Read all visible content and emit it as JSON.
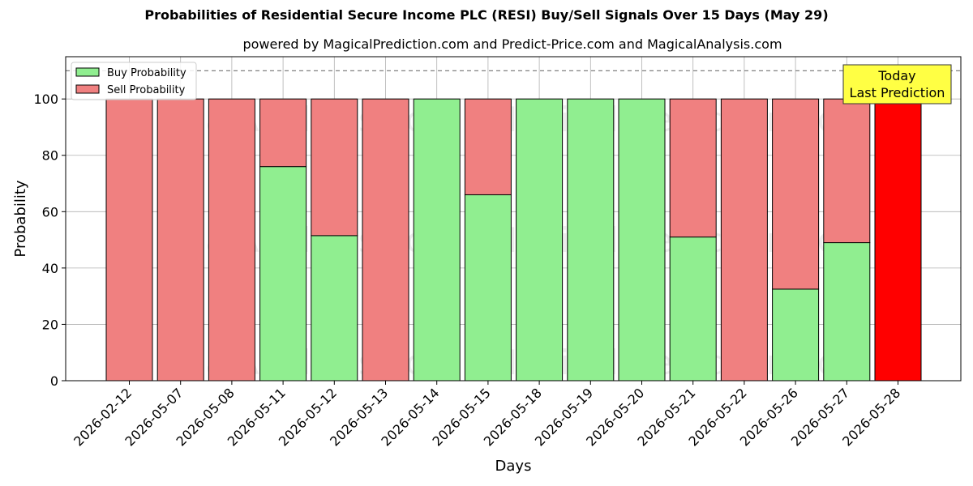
{
  "chart_data": {
    "type": "bar",
    "title": "Probabilities of Residential Secure Income PLC (RESI) Buy/Sell Signals Over 15 Days (May 29)",
    "subtitle": "powered by MagicalPrediction.com and Predict-Price.com and MagicalAnalysis.com",
    "xlabel": "Days",
    "ylabel": "Probability",
    "ylim": [
      0,
      115
    ],
    "yticks": [
      0,
      20,
      40,
      60,
      80,
      100
    ],
    "grid": true,
    "legend_position": "top-left",
    "reference_line": 110,
    "categories": [
      "2026-02-12",
      "2026-05-07",
      "2026-05-08",
      "2026-05-11",
      "2026-05-12",
      "2026-05-13",
      "2026-05-14",
      "2026-05-15",
      "2026-05-18",
      "2026-05-19",
      "2026-05-20",
      "2026-05-21",
      "2026-05-22",
      "2026-05-26",
      "2026-05-27",
      "2026-05-28"
    ],
    "series": [
      {
        "name": "Buy Probability",
        "color": "#90ee90",
        "values": [
          0,
          0,
          0,
          76,
          51.5,
          0,
          100,
          66,
          100,
          100,
          100,
          51,
          0,
          32.5,
          49,
          0
        ]
      },
      {
        "name": "Sell Probability",
        "color": "#f08080",
        "values": [
          100,
          100,
          100,
          24,
          48.5,
          100,
          0,
          34,
          0,
          0,
          0,
          49,
          100,
          67.5,
          51,
          100
        ]
      }
    ],
    "highlight": {
      "category": "2026-05-28",
      "color": "#ff0000",
      "value": 100
    },
    "annotation": {
      "lines": [
        "Today",
        "Last Prediction"
      ],
      "background": "#ffff44"
    },
    "watermarks": [
      "MagicalAnalysis.com",
      "MagicalPrediction.com"
    ]
  }
}
